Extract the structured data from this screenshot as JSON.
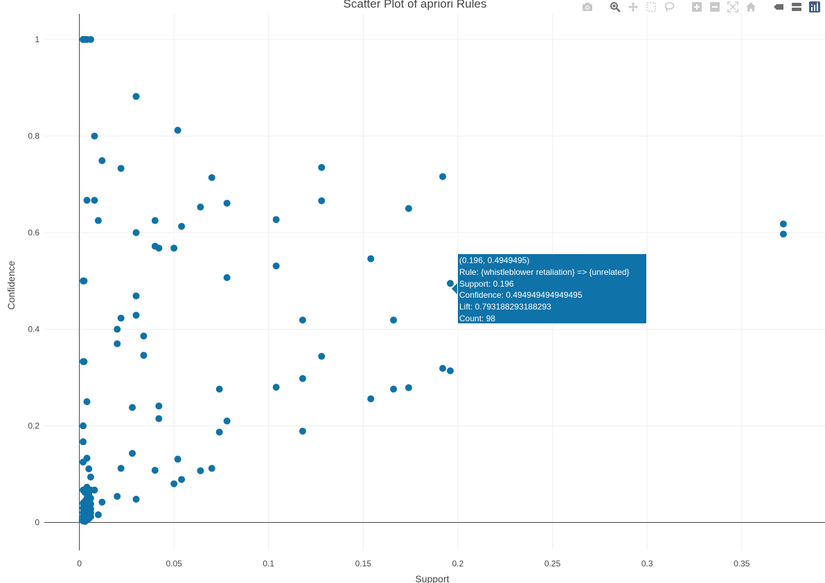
{
  "toolbar": {
    "colors": {
      "icon": "#c8c8c8",
      "active": "#6e6e6e",
      "brand": "#3f5a85"
    },
    "buttons": [
      {
        "name": "camera-icon",
        "state": "default"
      },
      {
        "name": "zoom-icon",
        "state": "active"
      },
      {
        "name": "pan-icon",
        "state": "default"
      },
      {
        "name": "box-select-icon",
        "state": "default"
      },
      {
        "name": "lasso-select-icon",
        "state": "default"
      },
      {
        "name": "zoom-in-icon",
        "state": "default"
      },
      {
        "name": "zoom-out-icon",
        "state": "default"
      },
      {
        "name": "autoscale-icon",
        "state": "default"
      },
      {
        "name": "home-icon",
        "state": "default"
      },
      {
        "name": "spike-lines-icon",
        "state": "active"
      },
      {
        "name": "compare-hover-icon",
        "state": "active"
      },
      {
        "name": "plotly-logo-icon",
        "state": "brand"
      }
    ]
  },
  "hover": {
    "lines": [
      "(0.196, 0.4949495)",
      "Rule: {whistleblower retaliation} => {unrelated}",
      "Support: 0.196",
      "Confidence: 0.494949494949495",
      "Lift: 0.793188293188293",
      "Count: 98"
    ],
    "background": "#0f72a8"
  },
  "chart_data": {
    "type": "scatter",
    "title": "Scatter Plot of apriori Rules",
    "xlabel": "Support",
    "ylabel": "Confidence",
    "xlim": [
      -0.0185,
      0.394
    ],
    "ylim": [
      -0.058,
      1.053
    ],
    "xticks": [
      0,
      0.05,
      0.1,
      0.15,
      0.2,
      0.25,
      0.3,
      0.35
    ],
    "xtick_labels": [
      "0",
      "0.05",
      "0.1",
      "0.15",
      "0.2",
      "0.25",
      "0.3",
      "0.35"
    ],
    "yticks": [
      0,
      0.2,
      0.4,
      0.6,
      0.8,
      1
    ],
    "ytick_labels": [
      "0",
      "0.2",
      "0.4",
      "0.6",
      "0.8",
      "1"
    ],
    "grid": true,
    "marker_color": "#0f72a8",
    "points": [
      [
        0.002,
        1.0
      ],
      [
        0.003,
        1.0
      ],
      [
        0.004,
        1.0
      ],
      [
        0.006,
        1.0
      ],
      [
        0.002,
        1.0
      ],
      [
        0.03,
        0.882
      ],
      [
        0.052,
        0.812
      ],
      [
        0.008,
        0.8
      ],
      [
        0.012,
        0.749
      ],
      [
        0.022,
        0.733
      ],
      [
        0.07,
        0.714
      ],
      [
        0.128,
        0.735
      ],
      [
        0.192,
        0.716
      ],
      [
        0.004,
        0.667
      ],
      [
        0.008,
        0.667
      ],
      [
        0.078,
        0.661
      ],
      [
        0.128,
        0.666
      ],
      [
        0.064,
        0.653
      ],
      [
        0.174,
        0.65
      ],
      [
        0.01,
        0.625
      ],
      [
        0.04,
        0.625
      ],
      [
        0.104,
        0.627
      ],
      [
        0.054,
        0.613
      ],
      [
        0.03,
        0.6
      ],
      [
        0.372,
        0.618
      ],
      [
        0.372,
        0.597
      ],
      [
        0.04,
        0.572
      ],
      [
        0.042,
        0.568
      ],
      [
        0.05,
        0.568
      ],
      [
        0.154,
        0.546
      ],
      [
        0.104,
        0.531
      ],
      [
        0.078,
        0.507
      ],
      [
        0.002,
        0.5
      ],
      [
        0.0025,
        0.5
      ],
      [
        0.196,
        0.4949495
      ],
      [
        0.03,
        0.469
      ],
      [
        0.03,
        0.429
      ],
      [
        0.022,
        0.423
      ],
      [
        0.118,
        0.419
      ],
      [
        0.166,
        0.419
      ],
      [
        0.02,
        0.4
      ],
      [
        0.034,
        0.386
      ],
      [
        0.02,
        0.37
      ],
      [
        0.034,
        0.346
      ],
      [
        0.128,
        0.344
      ],
      [
        0.002,
        0.333
      ],
      [
        0.0025,
        0.333
      ],
      [
        0.192,
        0.319
      ],
      [
        0.196,
        0.314
      ],
      [
        0.118,
        0.298
      ],
      [
        0.104,
        0.28
      ],
      [
        0.174,
        0.279
      ],
      [
        0.074,
        0.276
      ],
      [
        0.166,
        0.276
      ],
      [
        0.154,
        0.256
      ],
      [
        0.004,
        0.25
      ],
      [
        0.042,
        0.241
      ],
      [
        0.028,
        0.238
      ],
      [
        0.042,
        0.215
      ],
      [
        0.078,
        0.21
      ],
      [
        0.002,
        0.2
      ],
      [
        0.074,
        0.187
      ],
      [
        0.118,
        0.189
      ],
      [
        0.002,
        0.167
      ],
      [
        0.028,
        0.143
      ],
      [
        0.004,
        0.133
      ],
      [
        0.052,
        0.131
      ],
      [
        0.002,
        0.125
      ],
      [
        0.022,
        0.112
      ],
      [
        0.005,
        0.111
      ],
      [
        0.07,
        0.112
      ],
      [
        0.04,
        0.108
      ],
      [
        0.064,
        0.107
      ],
      [
        0.006,
        0.094
      ],
      [
        0.054,
        0.089
      ],
      [
        0.05,
        0.08
      ],
      [
        0.004,
        0.073
      ],
      [
        0.002,
        0.067
      ],
      [
        0.004,
        0.067
      ],
      [
        0.006,
        0.067
      ],
      [
        0.008,
        0.067
      ],
      [
        0.003,
        0.062
      ],
      [
        0.005,
        0.058
      ],
      [
        0.02,
        0.054
      ],
      [
        0.004,
        0.05
      ],
      [
        0.006,
        0.05
      ],
      [
        0.03,
        0.048
      ],
      [
        0.003,
        0.044
      ],
      [
        0.012,
        0.042
      ],
      [
        0.002,
        0.04
      ],
      [
        0.004,
        0.04
      ],
      [
        0.006,
        0.038
      ],
      [
        0.003,
        0.035
      ],
      [
        0.005,
        0.033
      ],
      [
        0.002,
        0.03
      ],
      [
        0.004,
        0.03
      ],
      [
        0.006,
        0.028
      ],
      [
        0.003,
        0.025
      ],
      [
        0.005,
        0.023
      ],
      [
        0.002,
        0.02
      ],
      [
        0.004,
        0.02
      ],
      [
        0.006,
        0.02
      ],
      [
        0.003,
        0.018
      ],
      [
        0.01,
        0.016
      ],
      [
        0.005,
        0.015
      ],
      [
        0.002,
        0.012
      ],
      [
        0.004,
        0.012
      ],
      [
        0.006,
        0.012
      ],
      [
        0.003,
        0.01
      ],
      [
        0.005,
        0.008
      ],
      [
        0.002,
        0.006
      ],
      [
        0.004,
        0.005
      ],
      [
        0.002,
        0.003
      ],
      [
        0.003,
        0.002
      ]
    ]
  }
}
